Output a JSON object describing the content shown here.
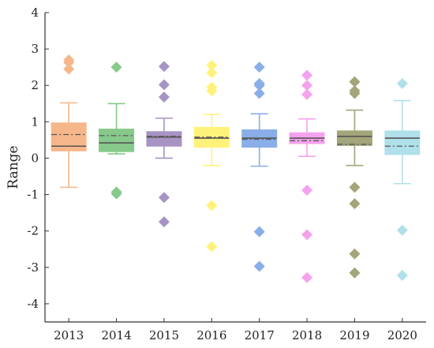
{
  "chart_data": {
    "type": "box",
    "title": "",
    "xlabel": "",
    "ylabel": "Range",
    "ylim": [
      -4.5,
      4
    ],
    "yticks": [
      -4,
      -3,
      -2,
      -1,
      0,
      1,
      2,
      3,
      4
    ],
    "grid": false,
    "legend": "none",
    "categories": [
      "2013",
      "2014",
      "2015",
      "2016",
      "2017",
      "2018",
      "2019",
      "2020"
    ],
    "boxes": [
      {
        "category": "2013",
        "color": "#f5b78a",
        "whisker_low": -0.8,
        "q1": 0.2,
        "median": 0.33,
        "mean": 0.65,
        "q3": 0.97,
        "whisker_high": 1.52,
        "outliers": [
          2.45,
          2.63,
          2.7
        ]
      },
      {
        "category": "2014",
        "color": "#86c98a",
        "whisker_low": 0.12,
        "q1": 0.18,
        "median": 0.42,
        "mean": 0.62,
        "q3": 0.8,
        "whisker_high": 1.5,
        "outliers": [
          2.5,
          -0.93,
          -0.98
        ]
      },
      {
        "category": "2015",
        "color": "#a794c4",
        "whisker_low": 0.0,
        "q1": 0.33,
        "median": 0.58,
        "mean": 0.6,
        "q3": 0.73,
        "whisker_high": 1.1,
        "outliers": [
          2.52,
          2.02,
          1.68,
          -1.08,
          -1.75
        ]
      },
      {
        "category": "2016",
        "color": "#fff27a",
        "whisker_low": -0.2,
        "q1": 0.3,
        "median": 0.55,
        "mean": 0.58,
        "q3": 0.85,
        "whisker_high": 1.2,
        "outliers": [
          2.55,
          2.35,
          1.95,
          1.85,
          -1.3,
          -2.43
        ]
      },
      {
        "category": "2017",
        "color": "#8aaee8",
        "whisker_low": -0.22,
        "q1": 0.3,
        "median": 0.55,
        "mean": 0.52,
        "q3": 0.78,
        "whisker_high": 1.22,
        "outliers": [
          2.5,
          2.05,
          2.0,
          1.78,
          -2.02,
          -2.97
        ]
      },
      {
        "category": "2018",
        "color": "#f5a2ee",
        "whisker_low": 0.05,
        "q1": 0.4,
        "median": 0.55,
        "mean": 0.48,
        "q3": 0.7,
        "whisker_high": 1.08,
        "outliers": [
          2.28,
          2.0,
          1.75,
          -0.88,
          -2.1,
          -3.28
        ]
      },
      {
        "category": "2019",
        "color": "#a3a57a",
        "whisker_low": -0.2,
        "q1": 0.35,
        "median": 0.6,
        "mean": 0.38,
        "q3": 0.75,
        "whisker_high": 1.32,
        "outliers": [
          2.1,
          1.85,
          1.78,
          -0.8,
          -1.25,
          -2.63,
          -3.15
        ]
      },
      {
        "category": "2020",
        "color": "#b0e0ea",
        "whisker_low": -0.7,
        "q1": 0.1,
        "median": 0.55,
        "mean": 0.33,
        "q3": 0.75,
        "whisker_high": 1.58,
        "outliers": [
          2.05,
          -1.98,
          -3.22
        ]
      }
    ]
  }
}
